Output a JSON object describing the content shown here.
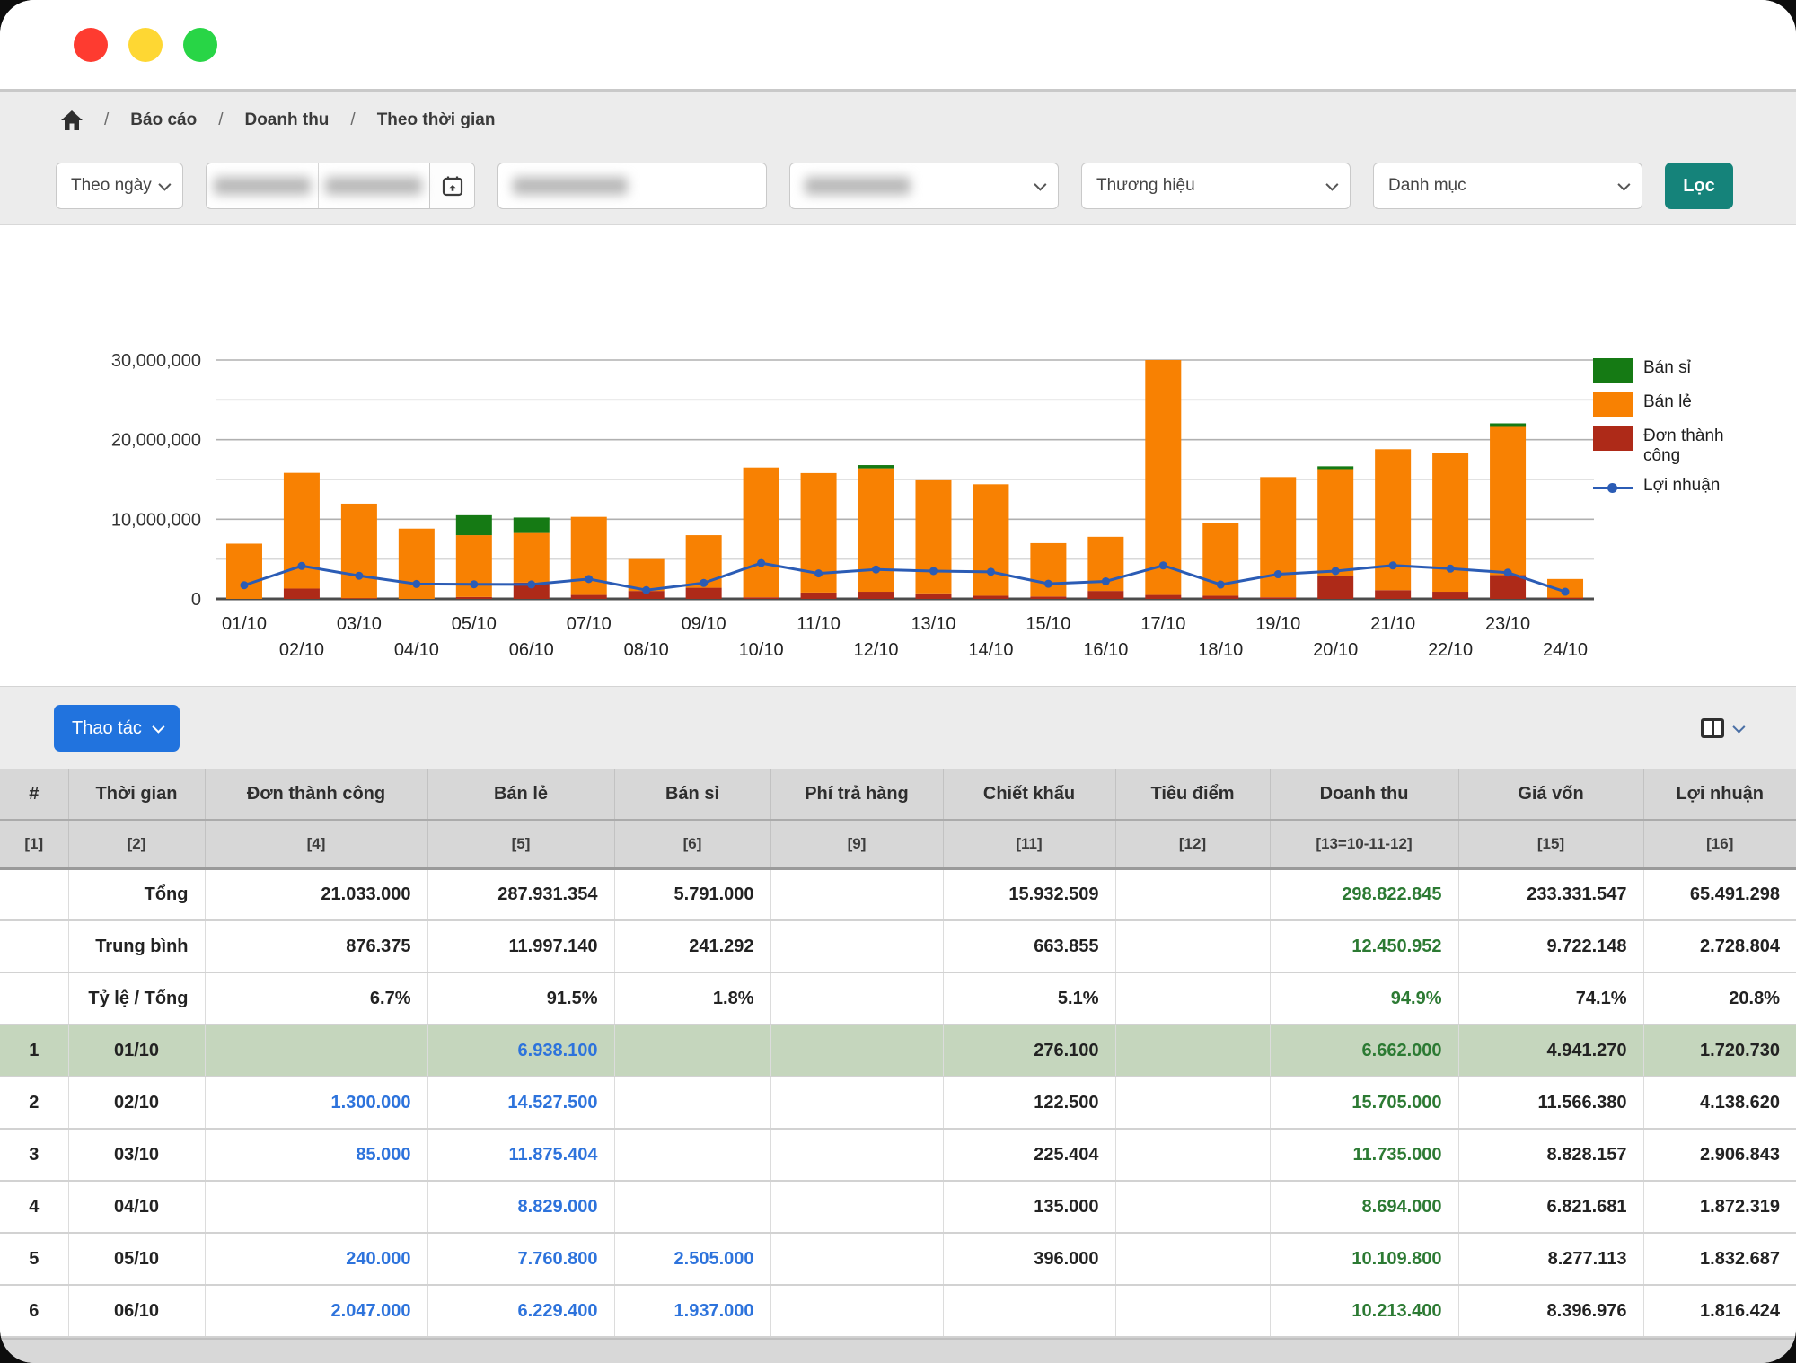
{
  "window": {
    "traffic_lights": [
      "red",
      "yellow",
      "green"
    ]
  },
  "breadcrumb": {
    "separator": "/",
    "home_icon": "home-icon",
    "items": [
      {
        "label": "Báo cáo"
      },
      {
        "label": "Doanh thu"
      },
      {
        "label": "Theo thời gian"
      }
    ]
  },
  "filters": {
    "mode": "Theo ngày",
    "date_range_redacted": true,
    "store_search_redacted": true,
    "store_select_redacted": true,
    "brand_placeholder": "Thương hiệu",
    "category_placeholder": "Danh mục",
    "filter_button": "Lọc",
    "filter_button_color": "#15837a"
  },
  "toolbar": {
    "action_button": "Thao tác",
    "action_color": "#2173de"
  },
  "chart_data": {
    "type": "bar",
    "stacked": true,
    "days": [
      "01/10",
      "02/10",
      "03/10",
      "04/10",
      "05/10",
      "06/10",
      "07/10",
      "08/10",
      "09/10",
      "10/10",
      "11/10",
      "12/10",
      "13/10",
      "14/10",
      "15/10",
      "16/10",
      "17/10",
      "18/10",
      "19/10",
      "20/10",
      "21/10",
      "22/10",
      "23/10",
      "24/10"
    ],
    "series": [
      {
        "name": "Đơn thành công",
        "color": "#ae2a18",
        "values": [
          0,
          1300000,
          85000,
          0,
          240000,
          2047000,
          500000,
          1000000,
          1400000,
          200000,
          800000,
          900000,
          700000,
          400000,
          300000,
          1000000,
          500000,
          400000,
          200000,
          2900000,
          1100000,
          900000,
          3000000,
          150000
        ]
      },
      {
        "name": "Bán lẻ",
        "color": "#f88102",
        "values": [
          6938100,
          14527500,
          11875404,
          8829000,
          7760800,
          6229400,
          9800000,
          4000000,
          6600000,
          16300000,
          15000000,
          15500000,
          14200000,
          14000000,
          6700000,
          6800000,
          29500000,
          9100000,
          15100000,
          13400000,
          17700000,
          17400000,
          18600000,
          2350000
        ]
      },
      {
        "name": "Bán sỉ",
        "color": "#157a14",
        "values": [
          0,
          0,
          0,
          0,
          2505000,
          1937000,
          0,
          0,
          0,
          0,
          0,
          400000,
          0,
          0,
          0,
          0,
          0,
          0,
          0,
          350000,
          0,
          0,
          450000,
          0
        ]
      }
    ],
    "line": {
      "name": "Lợi nhuận",
      "color": "#2b5cb5",
      "values": [
        1720730,
        4138620,
        2906843,
        1872319,
        1832687,
        1816424,
        2500000,
        1100000,
        2000000,
        4500000,
        3200000,
        3700000,
        3500000,
        3400000,
        1900000,
        2200000,
        4200000,
        1800000,
        3100000,
        3500000,
        4200000,
        3800000,
        3300000,
        900000
      ]
    },
    "legend": [
      {
        "label": "Bán sỉ",
        "color": "#157a14",
        "type": "box"
      },
      {
        "label": "Bán lẻ",
        "color": "#f88102",
        "type": "box"
      },
      {
        "label": "Đơn thành công",
        "color": "#ae2a18",
        "type": "box"
      },
      {
        "label": "Lợi nhuận",
        "color": "#2b5cb5",
        "type": "line"
      }
    ],
    "ylim": [
      0,
      30000000
    ],
    "ytick_step": 5000000,
    "ylabel_ticks": [
      "0",
      "10,000,000",
      "20,000,000",
      "30,000,000"
    ],
    "grid": true,
    "legend_position": "right"
  },
  "table": {
    "headers": [
      "#",
      "Thời gian",
      "Đơn thành công",
      "Bán lẻ",
      "Bán sỉ",
      "Phí trả hàng",
      "Chiết khấu",
      "Tiêu điểm",
      "Doanh thu",
      "Giá vốn",
      "Lợi nhuận"
    ],
    "subheaders": [
      "[1]",
      "[2]",
      "[4]",
      "[5]",
      "[6]",
      "[9]",
      "[11]",
      "[12]",
      "[13=10-11-12]",
      "[15]",
      "[16]"
    ],
    "summary_rows": [
      {
        "label": "Tổng",
        "cells": [
          "21.033.000",
          "287.931.354",
          "5.791.000",
          "",
          "15.932.509",
          "",
          "298.822.845",
          "233.331.547",
          "65.491.298"
        ]
      },
      {
        "label": "Trung bình",
        "cells": [
          "876.375",
          "11.997.140",
          "241.292",
          "",
          "663.855",
          "",
          "12.450.952",
          "9.722.148",
          "2.728.804"
        ]
      },
      {
        "label": "Tỷ lệ / Tổng",
        "cells": [
          "6.7%",
          "91.5%",
          "1.8%",
          "",
          "5.1%",
          "",
          "94.9%",
          "74.1%",
          "20.8%"
        ]
      }
    ],
    "rows": [
      {
        "stt": "1",
        "date": "01/10",
        "highlighted": true,
        "cells": [
          "",
          "6.938.100",
          "",
          "",
          "276.100",
          "",
          "6.662.000",
          "4.941.270",
          "1.720.730"
        ]
      },
      {
        "stt": "2",
        "date": "02/10",
        "highlighted": false,
        "cells": [
          "1.300.000",
          "14.527.500",
          "",
          "",
          "122.500",
          "",
          "15.705.000",
          "11.566.380",
          "4.138.620"
        ]
      },
      {
        "stt": "3",
        "date": "03/10",
        "highlighted": false,
        "cells": [
          "85.000",
          "11.875.404",
          "",
          "",
          "225.404",
          "",
          "11.735.000",
          "8.828.157",
          "2.906.843"
        ]
      },
      {
        "stt": "4",
        "date": "04/10",
        "highlighted": false,
        "cells": [
          "",
          "8.829.000",
          "",
          "",
          "135.000",
          "",
          "8.694.000",
          "6.821.681",
          "1.872.319"
        ]
      },
      {
        "stt": "5",
        "date": "05/10",
        "highlighted": false,
        "cells": [
          "240.000",
          "7.760.800",
          "2.505.000",
          "",
          "396.000",
          "",
          "10.109.800",
          "8.277.113",
          "1.832.687"
        ]
      },
      {
        "stt": "6",
        "date": "06/10",
        "highlighted": false,
        "cells": [
          "2.047.000",
          "6.229.400",
          "1.937.000",
          "",
          "",
          "",
          "10.213.400",
          "8.396.976",
          "1.816.424"
        ]
      }
    ]
  },
  "colors": {
    "link_blue": "#2d73dc",
    "revenue_green": "#2c7a33",
    "highlight_row": "#c5d6bd",
    "table_header_bg": "#d7d7d7"
  }
}
